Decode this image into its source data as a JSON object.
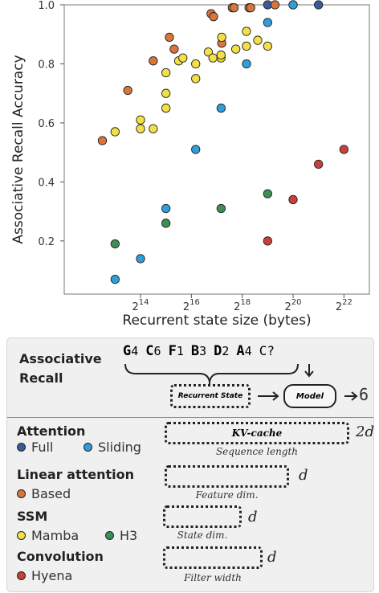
{
  "chart_data": {
    "type": "scatter",
    "xlabel": "Recurrent state size (bytes)",
    "ylabel": "Associative Recall Accuracy",
    "x_scale": "log2",
    "xlim": [
      2048,
      8388608
    ],
    "ylim": [
      0.02,
      1.0
    ],
    "x_ticks": [
      {
        "value": 16384,
        "base": "2",
        "exp": "14"
      },
      {
        "value": 65536,
        "base": "2",
        "exp": "16"
      },
      {
        "value": 262144,
        "base": "2",
        "exp": "18"
      },
      {
        "value": 1048576,
        "base": "2",
        "exp": "20"
      },
      {
        "value": 4194304,
        "base": "2",
        "exp": "22"
      }
    ],
    "y_ticks": [
      {
        "value": 0.2,
        "label": "0.2"
      },
      {
        "value": 0.4,
        "label": "0.4"
      },
      {
        "value": 0.6,
        "label": "0.6"
      },
      {
        "value": 0.8,
        "label": "0.8"
      },
      {
        "value": 1.0,
        "label": "1.0"
      }
    ],
    "series": [
      {
        "name": "Full",
        "color": "#3b5a9a",
        "points": [
          [
            524288,
            1.0
          ],
          [
            1048576,
            1.0
          ],
          [
            2097152,
            1.0
          ]
        ]
      },
      {
        "name": "Sliding",
        "color": "#2e9fd9",
        "points": [
          [
            8192,
            0.07
          ],
          [
            16384,
            0.14
          ],
          [
            32768,
            0.31
          ],
          [
            73728,
            0.51
          ],
          [
            147456,
            0.65
          ],
          [
            294912,
            0.8
          ],
          [
            524288,
            0.94
          ],
          [
            1048576,
            1.0
          ]
        ]
      },
      {
        "name": "Based",
        "color": "#d8743c",
        "points": [
          [
            5792,
            0.54
          ],
          [
            11585,
            0.71
          ],
          [
            23170,
            0.81
          ],
          [
            36000,
            0.89
          ],
          [
            41000,
            0.85
          ],
          [
            112000,
            0.97
          ],
          [
            120000,
            0.96
          ],
          [
            150000,
            0.87
          ],
          [
            200000,
            0.99
          ],
          [
            210000,
            0.99
          ],
          [
            316000,
            0.99
          ],
          [
            330000,
            0.99
          ],
          [
            640000,
            1.0
          ]
        ]
      },
      {
        "name": "Mamba",
        "color": "#f2e046",
        "points": [
          [
            8192,
            0.57
          ],
          [
            16384,
            0.58
          ],
          [
            16384,
            0.61
          ],
          [
            23170,
            0.58
          ],
          [
            32768,
            0.65
          ],
          [
            32768,
            0.7
          ],
          [
            32768,
            0.77
          ],
          [
            46341,
            0.81
          ],
          [
            52000,
            0.82
          ],
          [
            73728,
            0.8
          ],
          [
            73728,
            0.75
          ],
          [
            104000,
            0.84
          ],
          [
            118000,
            0.82
          ],
          [
            147000,
            0.82
          ],
          [
            147000,
            0.83
          ],
          [
            150000,
            0.89
          ],
          [
            220000,
            0.85
          ],
          [
            294000,
            0.86
          ],
          [
            294000,
            0.91
          ],
          [
            400000,
            0.88
          ],
          [
            524288,
            0.86
          ]
        ]
      },
      {
        "name": "H3",
        "color": "#3d8f55",
        "points": [
          [
            8192,
            0.19
          ],
          [
            32768,
            0.26
          ],
          [
            147456,
            0.31
          ],
          [
            524288,
            0.36
          ]
        ]
      },
      {
        "name": "Hyena",
        "color": "#c9403a",
        "points": [
          [
            524288,
            0.2
          ],
          [
            1048576,
            0.34
          ],
          [
            2097152,
            0.46
          ],
          [
            4194304,
            0.51
          ]
        ]
      }
    ]
  },
  "diagram": {
    "title": "Associative\nRecall",
    "sequence": [
      {
        "key": "G",
        "val": "4"
      },
      {
        "key": "C",
        "val": "6"
      },
      {
        "key": "F",
        "val": "1"
      },
      {
        "key": "B",
        "val": "3"
      },
      {
        "key": "D",
        "val": "2"
      },
      {
        "key": "A",
        "val": "4"
      }
    ],
    "query": "C?",
    "recurrent_state_label": "Recurrent State",
    "model_label": "Model",
    "output": "6"
  },
  "legend": {
    "groups": [
      {
        "title": "Attention",
        "entries": [
          {
            "name": "Full",
            "color": "#3b5a9a"
          },
          {
            "name": "Sliding",
            "color": "#2e9fd9"
          }
        ],
        "box_label": "KV-cache",
        "caption": "Sequence length",
        "var": "2d"
      },
      {
        "title": "Linear attention",
        "entries": [
          {
            "name": "Based",
            "color": "#d8743c"
          }
        ],
        "caption": "Feature dim.",
        "var": "d"
      },
      {
        "title": "SSM",
        "entries": [
          {
            "name": "Mamba",
            "color": "#f2e046"
          },
          {
            "name": "H3",
            "color": "#3d8f55"
          }
        ],
        "caption": "State dim.",
        "var": "d"
      },
      {
        "title": "Convolution",
        "entries": [
          {
            "name": "Hyena",
            "color": "#c9403a"
          }
        ],
        "caption": "Filter width",
        "var": "d"
      }
    ]
  }
}
